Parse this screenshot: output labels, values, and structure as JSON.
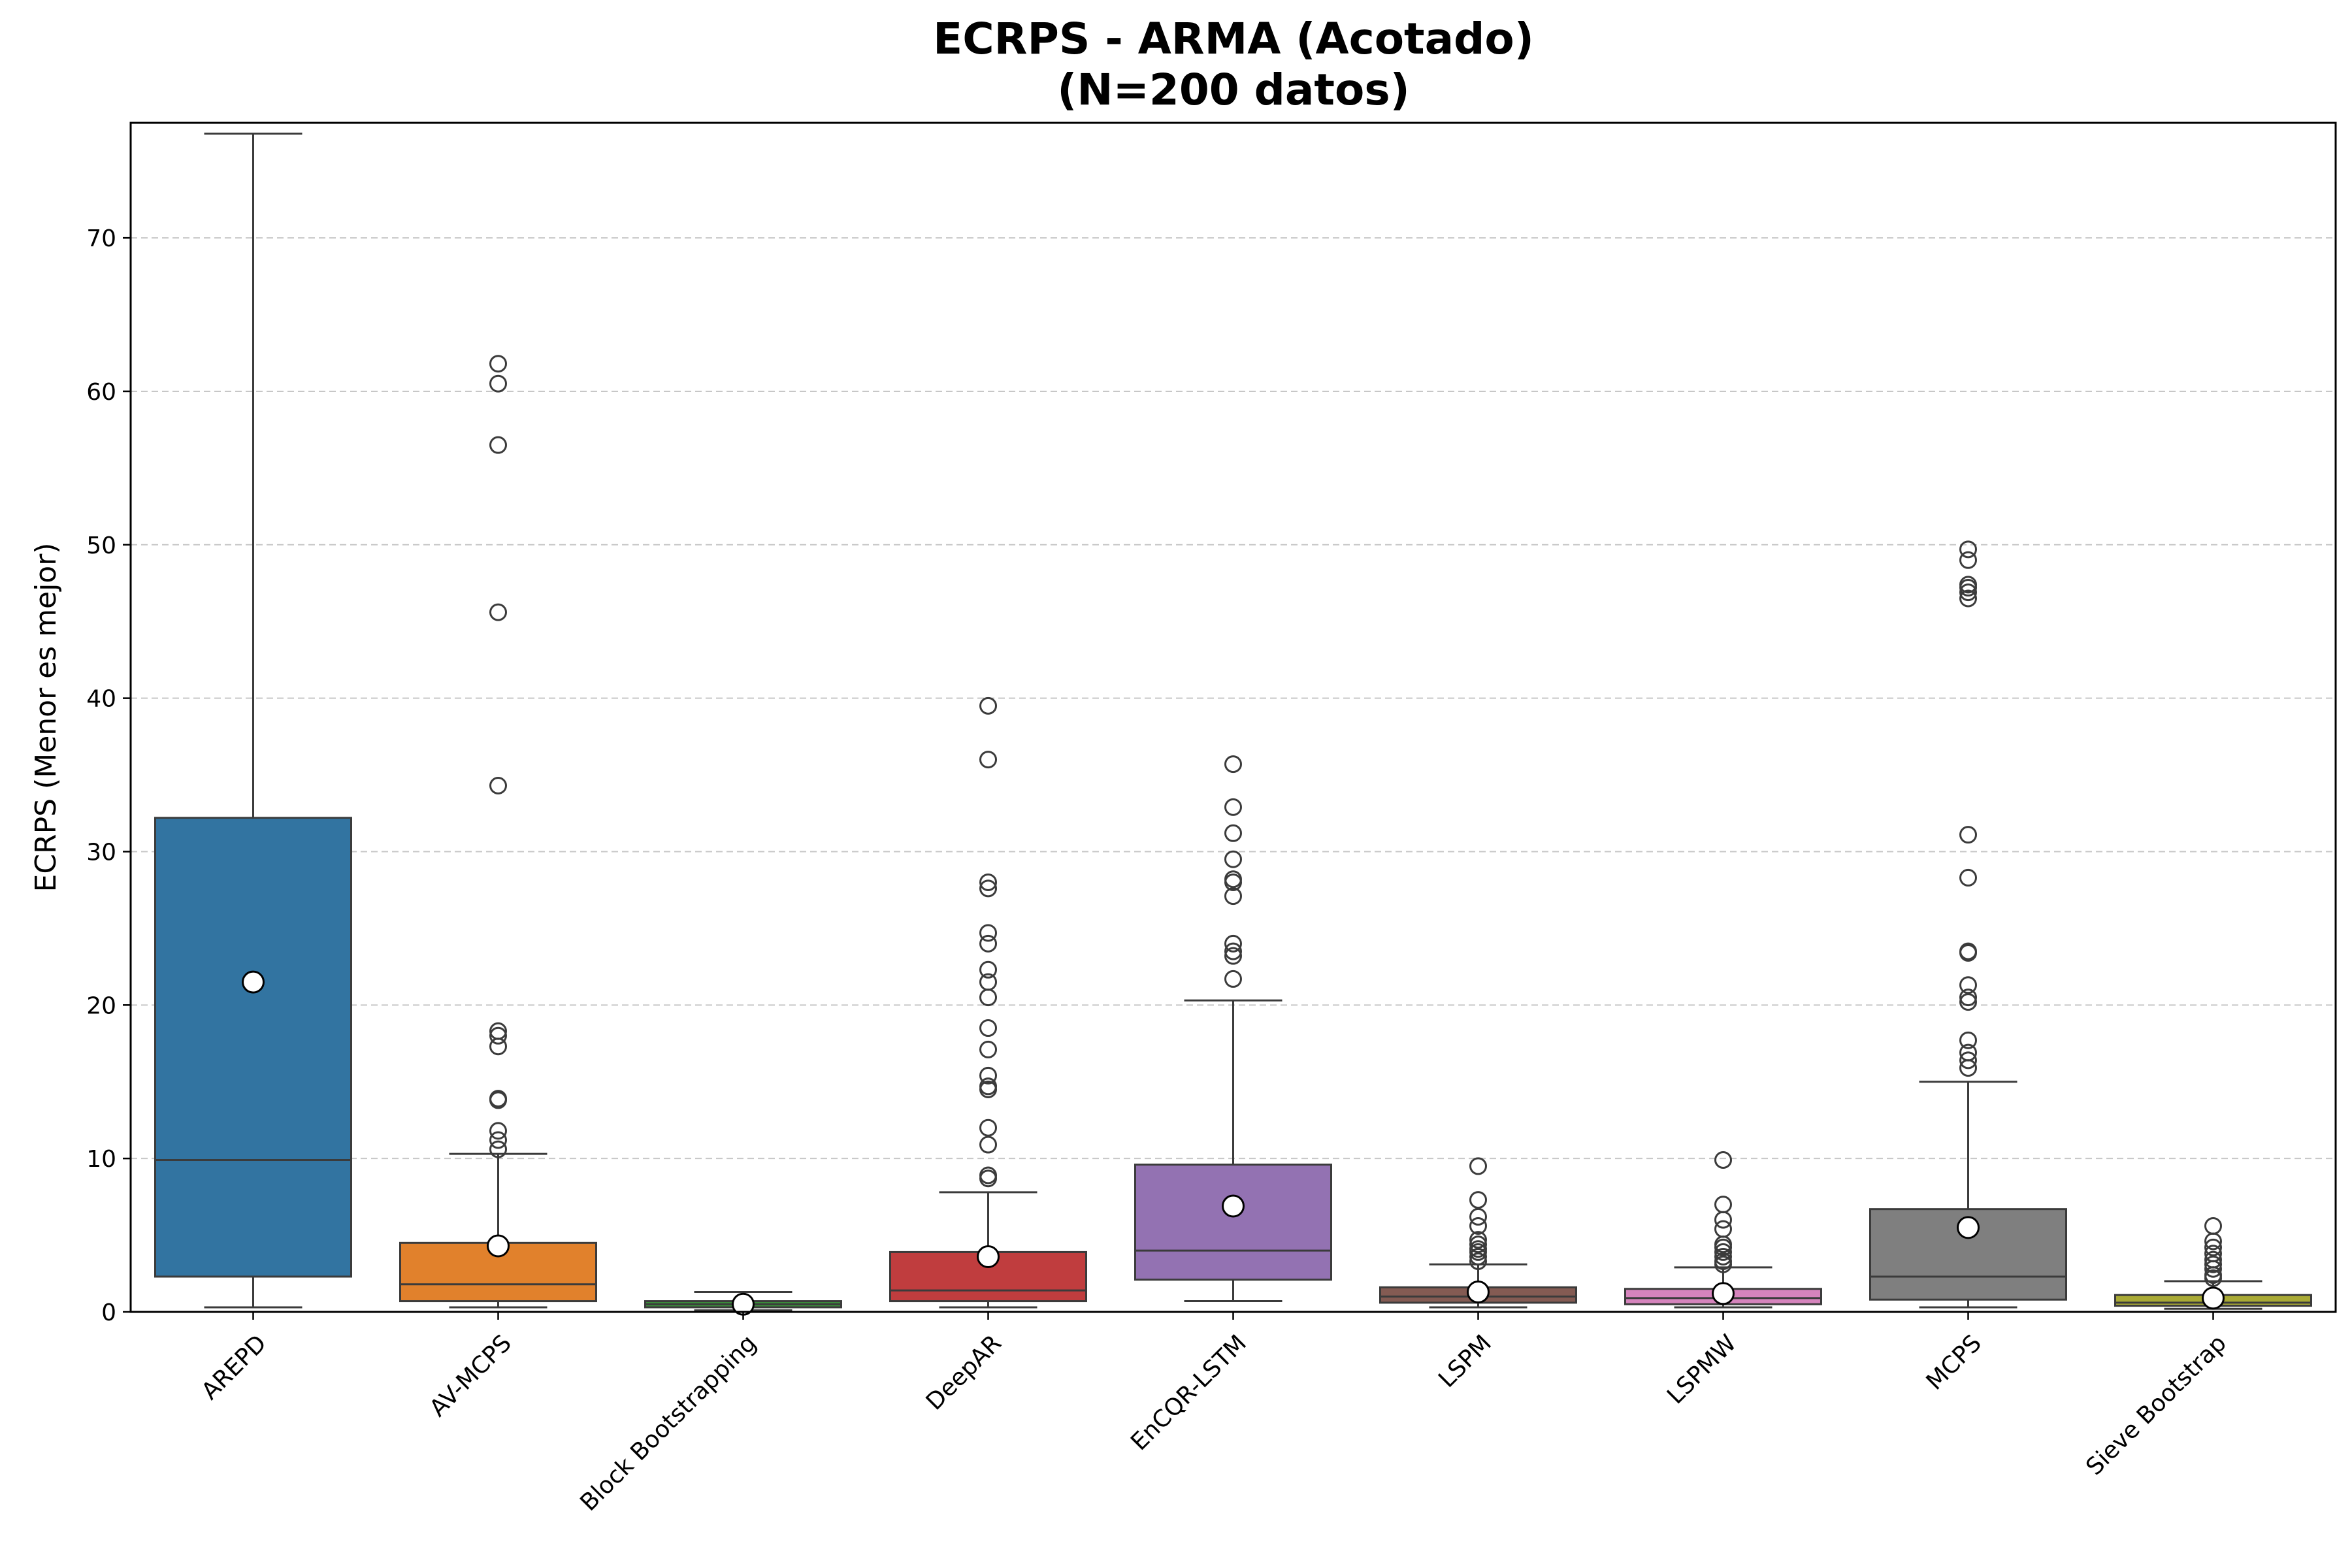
{
  "chart_data": {
    "type": "box",
    "title_lines": [
      "ECRPS - ARMA (Acotado)",
      "(N=200 datos)"
    ],
    "xlabel": "",
    "ylabel": "ECRPS (Menor es mejor)",
    "ylim": [
      0,
      77.5
    ],
    "yticks": [
      0,
      10,
      20,
      30,
      40,
      50,
      60,
      70
    ],
    "grid": "y-dashed",
    "categories": [
      "AREPD",
      "AV-MCPS",
      "Block Bootstrapping",
      "DeepAR",
      "EnCQR-LSTM",
      "LSPM",
      "LSPMW",
      "MCPS",
      "Sieve Bootstrap"
    ],
    "colors": [
      "#3274a1",
      "#e1812c",
      "#3a923a",
      "#c03d3e",
      "#9372b2",
      "#845b53",
      "#d684bd",
      "#7f7f7f",
      "#a9aa35"
    ],
    "boxes": [
      {
        "whisker_low": 0.3,
        "q1": 2.3,
        "median": 9.9,
        "q3": 32.2,
        "whisker_high": 76.8,
        "mean": 21.5,
        "outliers": []
      },
      {
        "whisker_low": 0.3,
        "q1": 0.7,
        "median": 1.8,
        "q3": 4.5,
        "whisker_high": 10.3,
        "mean": 4.3,
        "outliers": [
          10.6,
          11.2,
          11.8,
          13.8,
          13.9,
          17.3,
          18.0,
          18.3,
          34.3,
          45.6,
          56.5,
          60.5,
          61.8
        ]
      },
      {
        "whisker_low": 0.1,
        "q1": 0.3,
        "median": 0.5,
        "q3": 0.7,
        "whisker_high": 1.3,
        "mean": 0.5,
        "outliers": []
      },
      {
        "whisker_low": 0.3,
        "q1": 0.7,
        "median": 1.4,
        "q3": 3.9,
        "whisker_high": 7.8,
        "mean": 3.6,
        "outliers": [
          8.7,
          8.9,
          10.9,
          12.0,
          14.5,
          14.7,
          15.4,
          17.1,
          18.5,
          20.5,
          21.5,
          22.3,
          24.0,
          24.7,
          27.6,
          28.0,
          36.0,
          39.5
        ]
      },
      {
        "whisker_low": 0.7,
        "q1": 2.1,
        "median": 4.0,
        "q3": 9.6,
        "whisker_high": 20.3,
        "mean": 6.9,
        "outliers": [
          21.7,
          23.2,
          23.5,
          24.0,
          27.1,
          28.0,
          28.2,
          29.5,
          31.2,
          32.9,
          35.7
        ]
      },
      {
        "whisker_low": 0.3,
        "q1": 0.6,
        "median": 1.0,
        "q3": 1.6,
        "whisker_high": 3.1,
        "mean": 1.3,
        "outliers": [
          3.3,
          3.6,
          3.9,
          4.1,
          4.4,
          4.7,
          5.6,
          6.2,
          7.3,
          9.5
        ]
      },
      {
        "whisker_low": 0.3,
        "q1": 0.5,
        "median": 0.9,
        "q3": 1.5,
        "whisker_high": 2.9,
        "mean": 1.2,
        "outliers": [
          3.1,
          3.3,
          3.6,
          3.9,
          4.2,
          4.4,
          5.4,
          6.0,
          7.0,
          9.9
        ]
      },
      {
        "whisker_low": 0.3,
        "q1": 0.8,
        "median": 2.3,
        "q3": 6.7,
        "whisker_high": 15.0,
        "mean": 5.5,
        "outliers": [
          15.9,
          16.4,
          16.9,
          17.7,
          20.2,
          20.5,
          21.3,
          23.4,
          23.5,
          28.3,
          31.1,
          46.5,
          46.9,
          47.2,
          47.4,
          49.0,
          49.7
        ]
      },
      {
        "whisker_low": 0.2,
        "q1": 0.4,
        "median": 0.6,
        "q3": 1.1,
        "whisker_high": 2.0,
        "mean": 0.9,
        "outliers": [
          2.2,
          2.4,
          2.8,
          3.1,
          3.4,
          3.8,
          4.2,
          4.6,
          5.6
        ]
      }
    ]
  }
}
